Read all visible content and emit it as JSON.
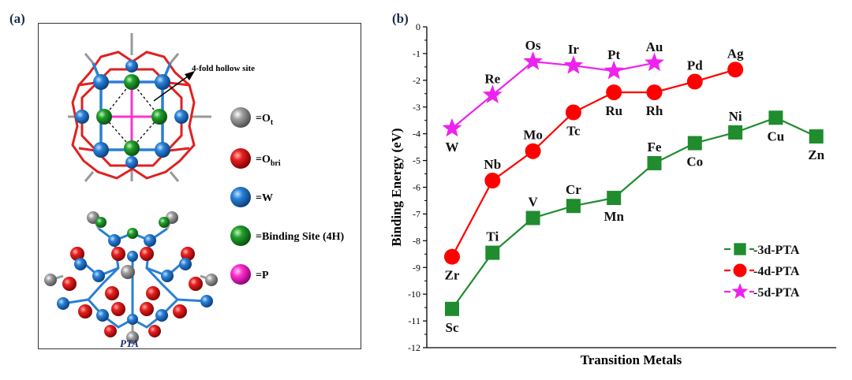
{
  "panel_a": {
    "label": "(a)",
    "annotation": "4-fold hollow site",
    "structure_name": "PTA",
    "legend": [
      {
        "main": "=O",
        "sub": "t",
        "color": "#8a8a8a",
        "name": "legend-ot"
      },
      {
        "main": "=O",
        "sub": "bri",
        "color": "#e02020",
        "name": "legend-obri"
      },
      {
        "main": "=W",
        "sub": "",
        "color": "#2a7fd4",
        "name": "legend-w"
      },
      {
        "main": "=Binding Site (4H)",
        "sub": "",
        "color": "#1f9a2a",
        "name": "legend-binding"
      },
      {
        "main": "=P",
        "sub": "",
        "color": "#ff33cc",
        "name": "legend-p"
      }
    ]
  },
  "panel_b": {
    "label": "(b)"
  },
  "chart_data": {
    "type": "line",
    "xlabel": "Transition Metals",
    "ylabel": "Binding Energy (eV)",
    "ylim": [
      -12,
      0
    ],
    "yticks": [
      "0",
      "-1",
      "-2",
      "-3",
      "-4",
      "-5",
      "-6",
      "-7",
      "-8",
      "-9",
      "-10",
      "-11",
      "-12"
    ],
    "legend_position": "bottom-right",
    "series": [
      {
        "name": "3d-PTA",
        "legend": "-3d-PTA",
        "color": "#1f8c2e",
        "marker": "square",
        "points": [
          {
            "x": 1,
            "y": -10.55,
            "label": "Sc",
            "pos": "below"
          },
          {
            "x": 2,
            "y": -8.45,
            "label": "Ti",
            "pos": "above"
          },
          {
            "x": 3,
            "y": -7.15,
            "label": "V",
            "pos": "above"
          },
          {
            "x": 4,
            "y": -6.7,
            "label": "Cr",
            "pos": "above"
          },
          {
            "x": 5,
            "y": -6.4,
            "label": "Mn",
            "pos": "below"
          },
          {
            "x": 6,
            "y": -5.1,
            "label": "Fe",
            "pos": "above"
          },
          {
            "x": 7,
            "y": -4.35,
            "label": "Co",
            "pos": "below"
          },
          {
            "x": 8,
            "y": -3.95,
            "label": "Ni",
            "pos": "above"
          },
          {
            "x": 9,
            "y": -3.4,
            "label": "Cu",
            "pos": "below"
          },
          {
            "x": 10,
            "y": -4.1,
            "label": "Zn",
            "pos": "below"
          }
        ]
      },
      {
        "name": "4d-PTA",
        "legend": "-4d-PTA",
        "color": "#ff0000",
        "marker": "circle",
        "points": [
          {
            "x": 1,
            "y": -8.6,
            "label": "Zr",
            "pos": "below"
          },
          {
            "x": 2,
            "y": -5.75,
            "label": "Nb",
            "pos": "above"
          },
          {
            "x": 3,
            "y": -4.65,
            "label": "Mo",
            "pos": "above"
          },
          {
            "x": 4,
            "y": -3.2,
            "label": "Tc",
            "pos": "below"
          },
          {
            "x": 5,
            "y": -2.45,
            "label": "Ru",
            "pos": "below"
          },
          {
            "x": 6,
            "y": -2.45,
            "label": "Rh",
            "pos": "below"
          },
          {
            "x": 7,
            "y": -2.05,
            "label": "Pd",
            "pos": "above"
          },
          {
            "x": 8,
            "y": -1.6,
            "label": "Ag",
            "pos": "above"
          }
        ]
      },
      {
        "name": "5d-PTA",
        "legend": "-5d-PTA",
        "color": "#ee22ee",
        "marker": "star",
        "points": [
          {
            "x": 1,
            "y": -3.8,
            "label": "W",
            "pos": "below"
          },
          {
            "x": 2,
            "y": -2.55,
            "label": "Re",
            "pos": "above"
          },
          {
            "x": 3,
            "y": -1.3,
            "label": "Os",
            "pos": "above"
          },
          {
            "x": 4,
            "y": -1.45,
            "label": "Ir",
            "pos": "above"
          },
          {
            "x": 5,
            "y": -1.65,
            "label": "Pt",
            "pos": "above"
          },
          {
            "x": 6,
            "y": -1.35,
            "label": "Au",
            "pos": "above"
          }
        ]
      }
    ]
  }
}
